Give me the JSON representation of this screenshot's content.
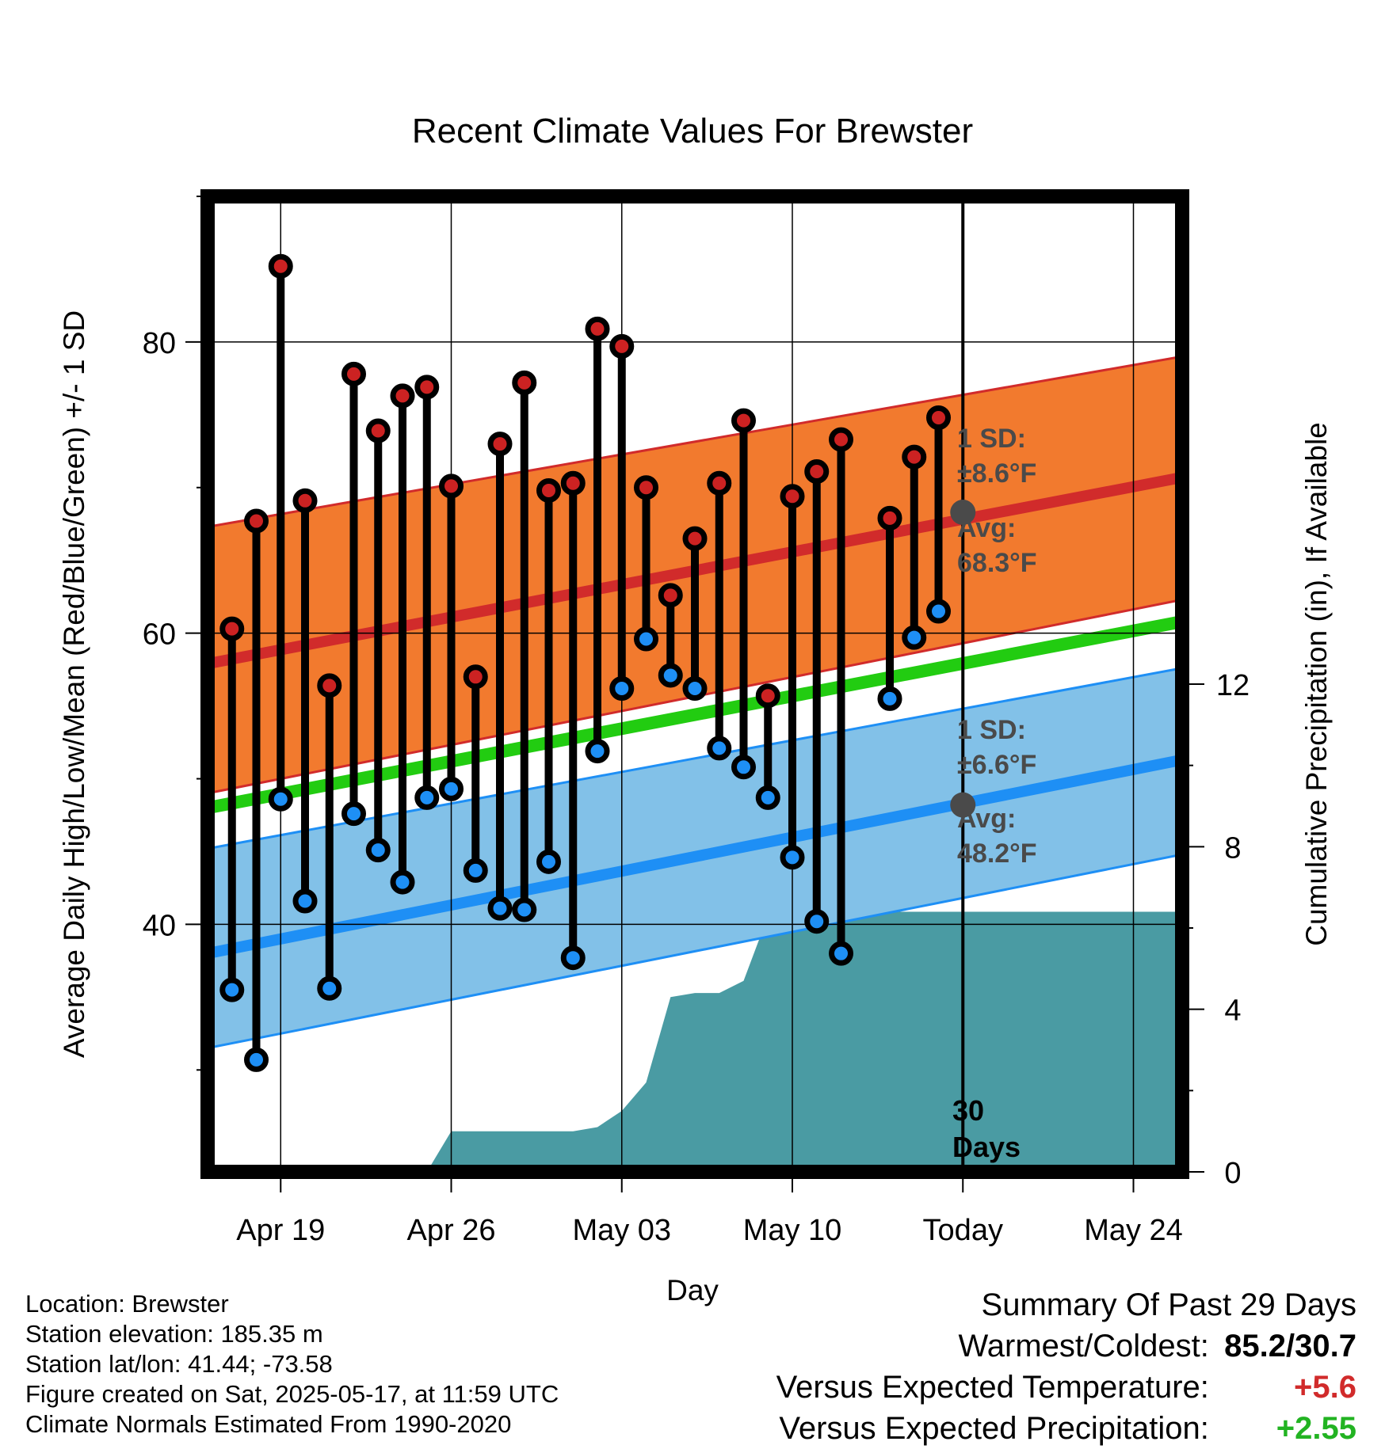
{
  "colors": {
    "high_band": "#f27a2e",
    "high_line": "#d12b2b",
    "low_band": "#82c1e8",
    "low_line": "#1e8ff5",
    "mean_line": "#22cc11",
    "precip": "#4a9ba3",
    "high_marker": "#cc2222",
    "low_marker": "#1e8ff5"
  },
  "chart_data": {
    "type": "line",
    "title": "Recent Climate Values For Brewster",
    "xlabel": "Day",
    "ylabel": "Average Daily High/Low/Mean (Red/Blue/Green) +/- 1 SD",
    "y2label": "Cumulative Precipitation (in), If Available",
    "x_range": [
      "2025-04-16",
      "2025-05-26"
    ],
    "ylim": [
      23,
      90
    ],
    "y2lim": [
      0,
      24
    ],
    "y_ticks": [
      40,
      60,
      80
    ],
    "y2_ticks": [
      0,
      4,
      8,
      12
    ],
    "x_ticks": [
      {
        "date": "2025-04-19",
        "label": "Apr 19"
      },
      {
        "date": "2025-04-26",
        "label": "Apr 26"
      },
      {
        "date": "2025-05-03",
        "label": "May 03"
      },
      {
        "date": "2025-05-10",
        "label": "May 10"
      },
      {
        "date": "2025-05-17",
        "label": "Today"
      },
      {
        "date": "2025-05-24",
        "label": "May 24"
      }
    ],
    "grid": true,
    "normals": {
      "dates": [
        "2025-04-16",
        "2025-05-26"
      ],
      "avg_high": [
        57.9,
        70.7
      ],
      "high_sd_upper": [
        67.3,
        79.0
      ],
      "high_sd_lower": [
        49.0,
        62.3
      ],
      "avg_mean": [
        48.0,
        60.8
      ],
      "avg_low": [
        38.0,
        51.3
      ],
      "low_sd_upper": [
        45.2,
        57.6
      ],
      "low_sd_lower": [
        31.5,
        44.8
      ]
    },
    "daily_dates": [
      "2025-04-17",
      "2025-04-18",
      "2025-04-19",
      "2025-04-20",
      "2025-04-21",
      "2025-04-22",
      "2025-04-23",
      "2025-04-24",
      "2025-04-25",
      "2025-04-26",
      "2025-04-27",
      "2025-04-28",
      "2025-04-29",
      "2025-04-30",
      "2025-05-01",
      "2025-05-02",
      "2025-05-03",
      "2025-05-04",
      "2025-05-05",
      "2025-05-06",
      "2025-05-07",
      "2025-05-08",
      "2025-05-09",
      "2025-05-10",
      "2025-05-11",
      "2025-05-12",
      "2025-05-14",
      "2025-05-15",
      "2025-05-16"
    ],
    "series": [
      {
        "name": "High",
        "values": [
          60.3,
          67.7,
          85.2,
          69.1,
          56.4,
          77.8,
          73.9,
          76.3,
          76.9,
          70.1,
          57.0,
          73.0,
          77.2,
          69.8,
          70.3,
          80.9,
          79.7,
          70.0,
          62.6,
          66.5,
          70.3,
          74.6,
          55.7,
          69.4,
          71.1,
          73.3,
          67.9,
          72.1,
          74.8
        ]
      },
      {
        "name": "Low",
        "values": [
          35.5,
          30.7,
          48.6,
          41.6,
          35.6,
          47.6,
          45.1,
          42.9,
          48.7,
          49.3,
          43.7,
          41.1,
          41.0,
          44.3,
          37.7,
          51.9,
          56.2,
          59.6,
          57.1,
          56.2,
          52.1,
          50.8,
          48.7,
          44.6,
          40.2,
          38.0,
          55.5,
          59.7,
          61.5
        ]
      }
    ],
    "precip": {
      "dates": [
        "2025-04-25",
        "2025-04-26",
        "2025-04-27",
        "2025-04-28",
        "2025-04-29",
        "2025-04-30",
        "2025-05-01",
        "2025-05-02",
        "2025-05-03",
        "2025-05-04",
        "2025-05-05",
        "2025-05-06",
        "2025-05-07",
        "2025-05-08",
        "2025-05-09",
        "2025-05-10",
        "2025-05-11",
        "2025-05-12",
        "2025-05-13",
        "2025-05-14",
        "2025-05-15",
        "2025-05-16",
        "2025-05-17",
        "2025-05-26"
      ],
      "values": [
        0,
        1.0,
        1.0,
        1.0,
        1.0,
        1.0,
        1.0,
        1.1,
        1.5,
        2.2,
        4.3,
        4.4,
        4.4,
        4.7,
        6.3,
        6.3,
        6.3,
        6.3,
        6.3,
        6.4,
        6.4,
        6.4,
        6.4,
        6.4
      ]
    },
    "annotations": {
      "high_sd_label": "1 SD:",
      "high_sd_value": "±8.6°F",
      "high_avg_label": "Avg:",
      "high_avg_value": "68.3°F",
      "low_sd_label": "1 SD:",
      "low_sd_value": "±6.6°F",
      "low_avg_label": "Avg:",
      "low_avg_value": "48.2°F",
      "window_num": "30",
      "window_unit": "Days"
    }
  },
  "footer": {
    "location": "Location: Brewster",
    "elevation": "Station elevation: 185.35 m",
    "latlon": "Station lat/lon: 41.44; -73.58",
    "created": "Figure created on Sat, 2025-05-17, at 11:59 UTC",
    "normals": "Climate Normals Estimated From 1990-2020"
  },
  "summary": {
    "heading": "Summary Of Past 29 Days",
    "warm_cold_label": "Warmest/Coldest:",
    "warm_cold_value": "85.2/30.7",
    "temp_label": "Versus Expected Temperature:",
    "temp_value": "+5.6",
    "precip_label": "Versus Expected Precipitation:",
    "precip_value": "+2.55"
  }
}
